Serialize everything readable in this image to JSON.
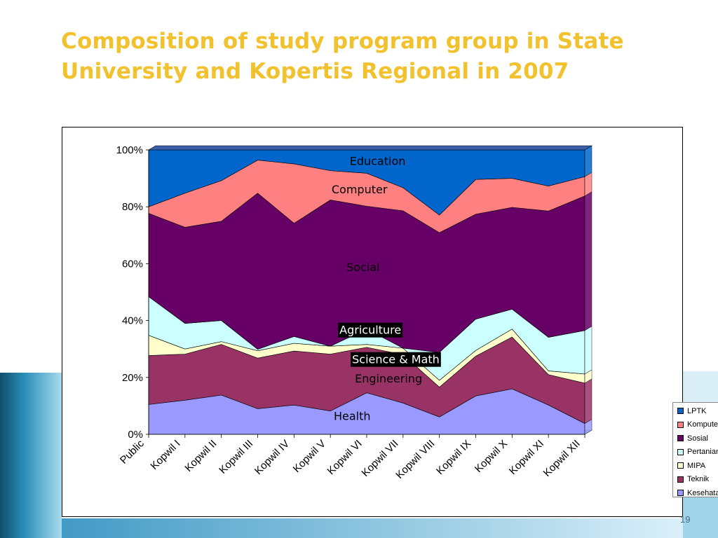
{
  "slide": {
    "title_line1": "Composition of study program group in State",
    "title_line2": "University and Kopertis Regional in 2007",
    "page_number": "19",
    "title_color": "#f2c12e"
  },
  "chart_data": {
    "type": "area",
    "stacked": "percent",
    "categories": [
      "Public",
      "Kopwil I",
      "Kopwil II",
      "Kopwil III",
      "Kopwil IV",
      "Kopwil V",
      "Kopwil VI",
      "Kopwil VII",
      "Kopwil VIII",
      "Kopwil IX",
      "Kopwil X",
      "Kopwil XI",
      "Kopwil XII"
    ],
    "y_ticks": [
      "0%",
      "20%",
      "40%",
      "60%",
      "80%",
      "100%"
    ],
    "ylim": [
      0,
      100
    ],
    "legend_position": "right",
    "series": [
      {
        "name": "Kesehatan",
        "color": "#9999ff",
        "values": [
          10.5,
          12,
          13.8,
          9,
          10.3,
          8.2,
          14.6,
          11,
          6.1,
          13.5,
          16,
          10.3,
          3.8
        ]
      },
      {
        "name": "Teknik",
        "color": "#993366",
        "values": [
          17.2,
          16.2,
          17.8,
          17.8,
          19,
          20,
          16,
          17,
          10.5,
          14,
          18.2,
          10.7,
          14.2
        ]
      },
      {
        "name": "MIPA",
        "color": "#ffffcc",
        "values": [
          7.1,
          1.8,
          1,
          2.6,
          2.7,
          2.8,
          1,
          2.3,
          2.4,
          2,
          2.8,
          1.3,
          3.2
        ]
      },
      {
        "name": "Pertanian",
        "color": "#ccffff",
        "values": [
          13.6,
          9,
          7.4,
          0.5,
          2.4,
          0,
          5.4,
          0,
          9.8,
          11,
          7,
          11.8,
          15.3
        ]
      },
      {
        "name": "Sosial",
        "color": "#660066",
        "values": [
          29.3,
          33.8,
          34.9,
          54.9,
          39.8,
          51.4,
          43.2,
          48.3,
          42.1,
          36.9,
          35.8,
          44.4,
          47.3
        ]
      },
      {
        "name": "Komputer",
        "color": "#ff8080",
        "values": [
          2.3,
          12,
          14.3,
          11.6,
          20.9,
          10.3,
          11.6,
          8.1,
          6.2,
          12.2,
          10.2,
          8.8,
          6.8
        ]
      },
      {
        "name": "LPTK",
        "color": "#0066cc",
        "values": [
          20,
          15.2,
          10.8,
          3.6,
          4.9,
          7.3,
          8.2,
          13.3,
          22.9,
          10.4,
          10,
          12.7,
          9.4
        ]
      }
    ],
    "annotations": [
      "Education",
      "Computer",
      "Social",
      "Agriculture",
      "Science & Math",
      "Engineering",
      "Health"
    ]
  }
}
